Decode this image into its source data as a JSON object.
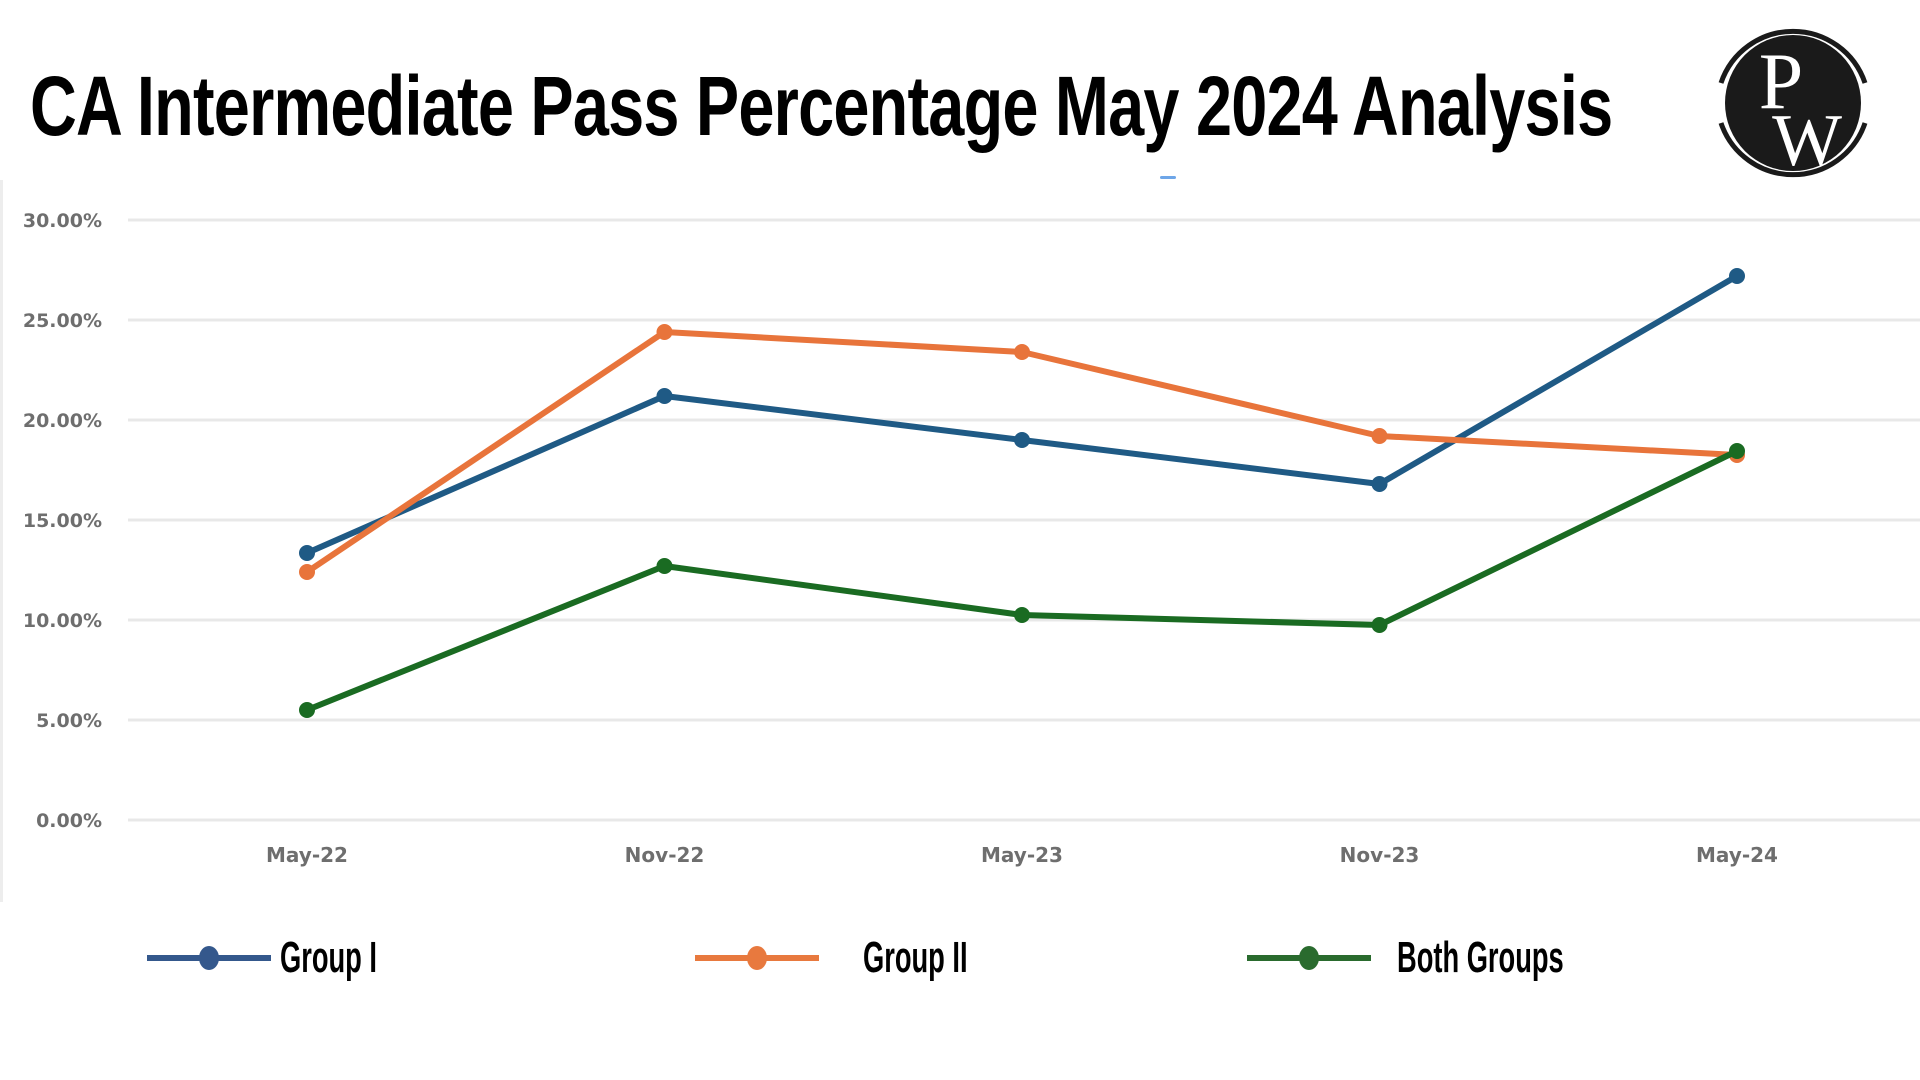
{
  "header": {
    "title": "CA Intermediate Pass Percentage May 2024 Analysis",
    "logo": {
      "icon": "pw-logo-icon",
      "letters": [
        "P",
        "W"
      ]
    }
  },
  "colors": {
    "group1": "#1f5a85",
    "group2": "#e8743b",
    "both": "#1a6b22",
    "legend_group1": "#34588c",
    "legend_group2": "#e8793e",
    "legend_both": "#2a6b2e",
    "grid": "#e8e8e8",
    "tick_text": "#6e6e6e"
  },
  "chart_data": {
    "type": "line",
    "title": "CA Intermediate Pass Percentage May 2024 Analysis",
    "xlabel": "",
    "ylabel": "",
    "categories": [
      "May-22",
      "Nov-22",
      "May-23",
      "Nov-23",
      "May-24"
    ],
    "series": [
      {
        "name": "Group I",
        "color_key": "group1",
        "values": [
          13.35,
          21.2,
          19.0,
          16.8,
          27.2
        ]
      },
      {
        "name": "Group II",
        "color_key": "group2",
        "values": [
          12.4,
          24.4,
          23.4,
          19.2,
          18.25
        ]
      },
      {
        "name": "Both Groups",
        "color_key": "both",
        "values": [
          5.5,
          12.7,
          10.25,
          9.75,
          18.45
        ]
      }
    ],
    "ylim": [
      0,
      30
    ],
    "yticks": [
      0,
      5,
      10,
      15,
      20,
      25,
      30
    ],
    "ytick_labels": [
      "0.00%",
      "5.00%",
      "10.00%",
      "15.00%",
      "20.00%",
      "25.00%",
      "30.00%"
    ],
    "grid": true,
    "markers": true,
    "legend_position": "bottom"
  },
  "legend": [
    {
      "label": "Group I",
      "color_key": "legend_group1"
    },
    {
      "label": "Group II",
      "color_key": "legend_group2"
    },
    {
      "label": "Both Groups",
      "color_key": "legend_both"
    }
  ]
}
